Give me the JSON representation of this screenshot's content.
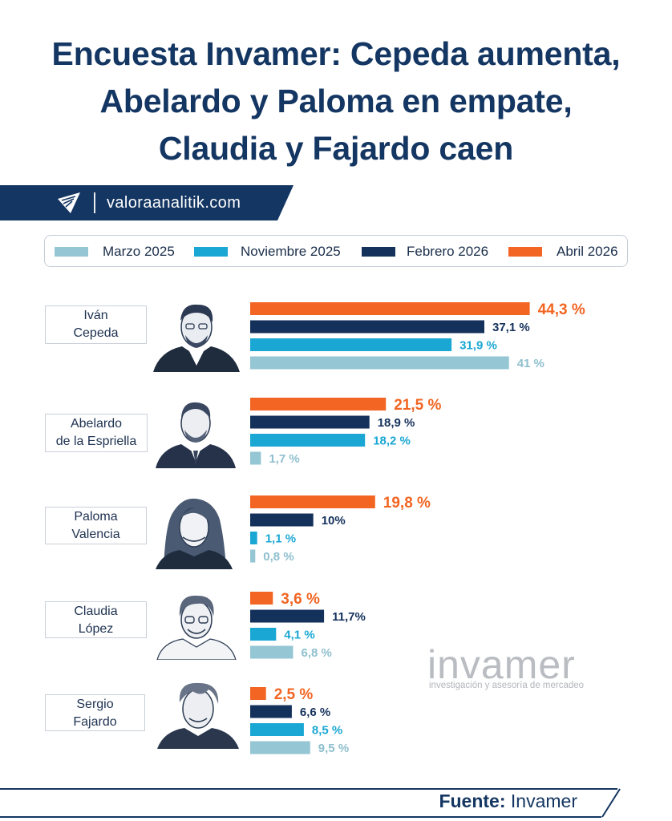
{
  "title": {
    "line1": "Encuesta Invamer: Cepeda aumenta,",
    "line2": "Abelardo y Paloma en empate,",
    "line3": "Claudia y Fajardo caen"
  },
  "brand": {
    "site": "valoraanalitik.com"
  },
  "colors": {
    "marzo_2025": "#94c6d3",
    "noviembre_2025": "#1aa7d4",
    "febrero_2026": "#14315c",
    "abril_2026": "#f26522",
    "navy": "#143662"
  },
  "chart_data": {
    "type": "bar",
    "orientation": "horizontal",
    "title": "Encuesta Invamer: Cepeda aumenta, Abelardo y Paloma en empate, Claudia y Fajardo caen",
    "unit": "%",
    "categories": [
      "Iván Cepeda",
      "Abelardo de la Espriella",
      "Paloma Valencia",
      "Claudia López",
      "Sergio Fajardo"
    ],
    "category_labels": [
      {
        "line1": "Iván",
        "line2": "Cepeda"
      },
      {
        "line1": "Abelardo",
        "line2": "de la Espriella"
      },
      {
        "line1": "Paloma",
        "line2": "Valencia"
      },
      {
        "line1": "Claudia",
        "line2": "López"
      },
      {
        "line1": "Sergio",
        "line2": "Fajardo"
      }
    ],
    "series": [
      {
        "name": "Abril 2026",
        "color": "#f26522",
        "values": [
          44.3,
          21.5,
          19.8,
          3.6,
          2.5
        ],
        "labels": [
          "44,3 %",
          "21,5 %",
          "19,8 %",
          "3,6 %",
          "2,5 %"
        ]
      },
      {
        "name": "Febrero 2026",
        "color": "#14315c",
        "values": [
          37.1,
          18.9,
          10,
          11.7,
          6.6
        ],
        "labels": [
          "37,1 %",
          "18,9 %",
          "10%",
          "11,7%",
          "6,6 %"
        ]
      },
      {
        "name": "Noviembre 2025",
        "color": "#1aa7d4",
        "values": [
          31.9,
          18.2,
          1.1,
          4.1,
          8.5
        ],
        "labels": [
          "31,9 %",
          "18,2 %",
          "1,1 %",
          "4,1 %",
          "8,5 %"
        ]
      },
      {
        "name": "Marzo 2025",
        "color": "#94c6d3",
        "values": [
          41,
          1.7,
          0.8,
          6.8,
          9.5
        ],
        "labels": [
          "41 %",
          "1,7 %",
          "0,8 %",
          "6,8 %",
          "9,5 %"
        ]
      }
    ],
    "legend": [
      "Marzo 2025",
      "Noviembre 2025",
      "Febrero 2026",
      "Abril 2026"
    ],
    "legend_position": "top",
    "grid": false
  },
  "watermark": {
    "word": "invamer",
    "tagline": "investigación y asesoría de mercadeo"
  },
  "footer": {
    "label": "Fuente:",
    "source": "Invamer"
  }
}
